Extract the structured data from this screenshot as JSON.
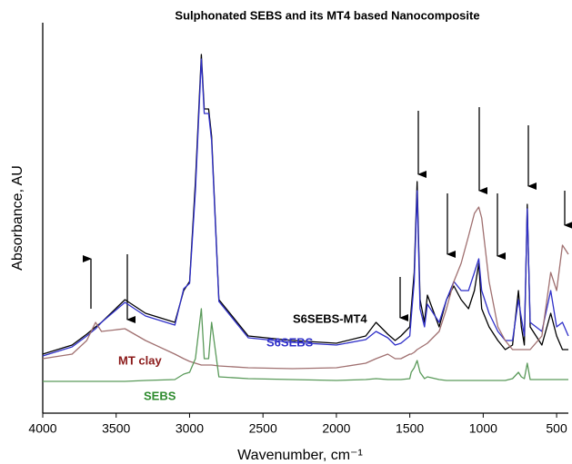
{
  "chart_data": {
    "type": "line",
    "title": "Sulphonated SEBS and its MT4 based Nanocomposite",
    "xlabel": "Wavenumber, cm⁻¹",
    "ylabel": "Absorbance, AU",
    "x": [
      4000,
      3800,
      3700,
      3640,
      3600,
      3440,
      3300,
      3100,
      3040,
      3000,
      2960,
      2920,
      2900,
      2870,
      2850,
      2800,
      2600,
      2300,
      2000,
      1800,
      1730,
      1650,
      1600,
      1560,
      1500,
      1490,
      1470,
      1450,
      1430,
      1400,
      1380,
      1300,
      1250,
      1200,
      1150,
      1100,
      1060,
      1030,
      1010,
      960,
      900,
      850,
      800,
      760,
      740,
      720,
      700,
      680,
      600,
      540,
      500,
      460,
      420
    ],
    "series": [
      {
        "name": "S6SEBS-MT4",
        "color": "#000000",
        "values": [
          65,
          75,
          87,
          95,
          100,
          125,
          110,
          100,
          135,
          145,
          255,
          395,
          335,
          335,
          305,
          125,
          85,
          80,
          77,
          85,
          100,
          87,
          80,
          85,
          95,
          115,
          155,
          255,
          125,
          100,
          130,
          95,
          125,
          140,
          125,
          115,
          135,
          165,
          115,
          95,
          80,
          70,
          75,
          135,
          95,
          75,
          230,
          95,
          75,
          110,
          85,
          70,
          70
        ]
      },
      {
        "name": "S6SEBS",
        "color": "#2f2fc8",
        "values": [
          63,
          73,
          85,
          93,
          100,
          122,
          107,
          97,
          137,
          143,
          245,
          390,
          330,
          330,
          300,
          123,
          83,
          78,
          75,
          81,
          90,
          83,
          75,
          77,
          85,
          105,
          145,
          245,
          115,
          95,
          120,
          100,
          125,
          145,
          135,
          135,
          155,
          170,
          135,
          110,
          90,
          80,
          80,
          125,
          105,
          85,
          225,
          100,
          90,
          135,
          95,
          100,
          85
        ]
      },
      {
        "name": "MT clay",
        "color": "#a07070",
        "values": [
          60,
          65,
          80,
          100,
          90,
          93,
          80,
          65,
          60,
          57,
          55,
          53,
          53,
          53,
          53,
          52,
          50,
          49,
          50,
          55,
          60,
          65,
          60,
          60,
          65,
          65,
          67,
          70,
          72,
          75,
          77,
          90,
          115,
          145,
          165,
          195,
          220,
          227,
          215,
          145,
          95,
          80,
          70,
          70,
          70,
          70,
          70,
          70,
          85,
          155,
          135,
          185,
          175
        ]
      },
      {
        "name": "SEBS",
        "color": "#5a9a5a",
        "values": [
          35,
          35,
          35,
          35,
          35,
          35,
          36,
          37,
          43,
          45,
          60,
          115,
          60,
          60,
          100,
          40,
          38,
          37,
          36,
          37,
          38,
          37,
          37,
          37,
          38,
          45,
          50,
          58,
          45,
          38,
          40,
          37,
          36,
          36,
          36,
          36,
          36,
          36,
          36,
          36,
          36,
          36,
          38,
          45,
          40,
          38,
          55,
          37,
          37,
          37,
          37,
          37,
          37
        ]
      }
    ],
    "label_colors": [
      "#000000",
      "#2f2fc8",
      "#8b1a1a",
      "#2e8b2e"
    ],
    "xlim": [
      4000,
      420
    ],
    "ylim": [
      0,
      430
    ],
    "xticks": [
      4000,
      3500,
      3000,
      2500,
      2000,
      1500,
      1000,
      500
    ]
  }
}
